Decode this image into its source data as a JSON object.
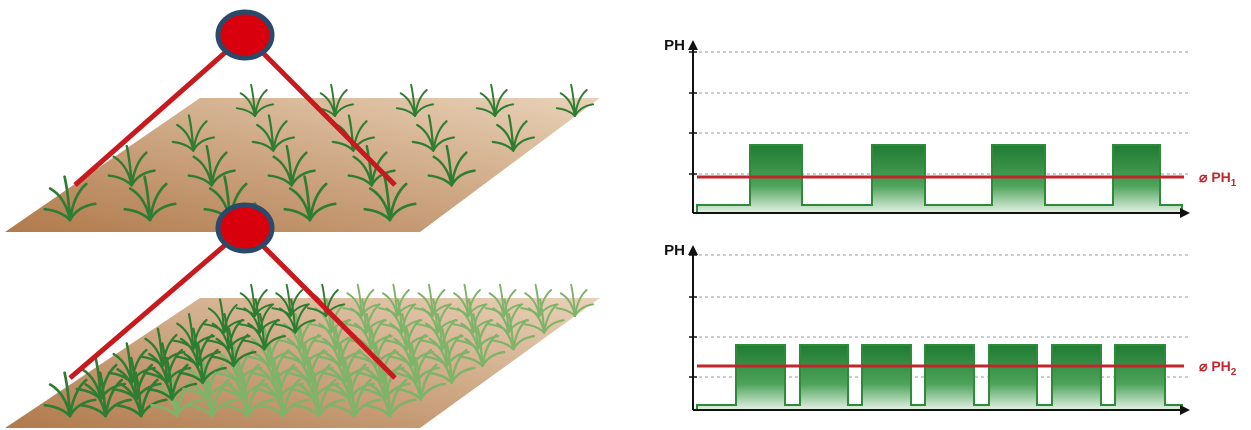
{
  "panels": [
    {
      "y_label": "PH",
      "mean_label": "⌀ PH",
      "mean_subscript": "1"
    },
    {
      "y_label": "PH",
      "mean_label": "⌀ PH",
      "mean_subscript": "2"
    }
  ]
}
